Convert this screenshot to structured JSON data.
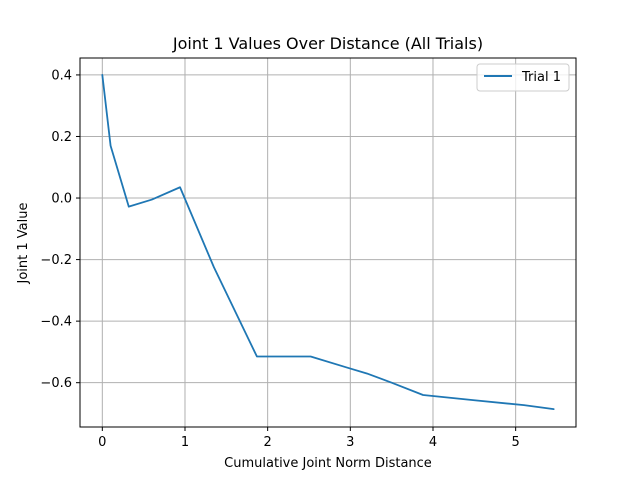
{
  "chart_data": {
    "type": "line",
    "title": "Joint 1 Values Over Distance (All Trials)",
    "xlabel": "Cumulative Joint Norm Distance",
    "ylabel": "Joint 1 Value",
    "xlim": [
      -0.27,
      5.73
    ],
    "ylim": [
      -0.744,
      0.455
    ],
    "xticks": [
      0,
      1,
      2,
      3,
      4,
      5
    ],
    "yticks": [
      0.4,
      0.2,
      0.0,
      -0.2,
      -0.4,
      -0.6
    ],
    "xtick_labels": [
      "0",
      "1",
      "2",
      "3",
      "4",
      "5"
    ],
    "ytick_labels": [
      "0.4",
      "0.2",
      "0.0",
      "−0.2",
      "−0.4",
      "−0.6"
    ],
    "grid": true,
    "legend_position": "top-right",
    "series": [
      {
        "name": "Trial 1",
        "color": "#1f77b4",
        "x": [
          0.0,
          0.1,
          0.32,
          0.6,
          0.94,
          1.35,
          1.87,
          2.52,
          2.95,
          3.2,
          3.5,
          3.88,
          4.5,
          5.1,
          5.46
        ],
        "y": [
          0.4,
          0.17,
          -0.028,
          -0.005,
          0.035,
          -0.225,
          -0.515,
          -0.515,
          -0.55,
          -0.57,
          -0.6,
          -0.64,
          -0.657,
          -0.673,
          -0.686
        ]
      }
    ]
  }
}
